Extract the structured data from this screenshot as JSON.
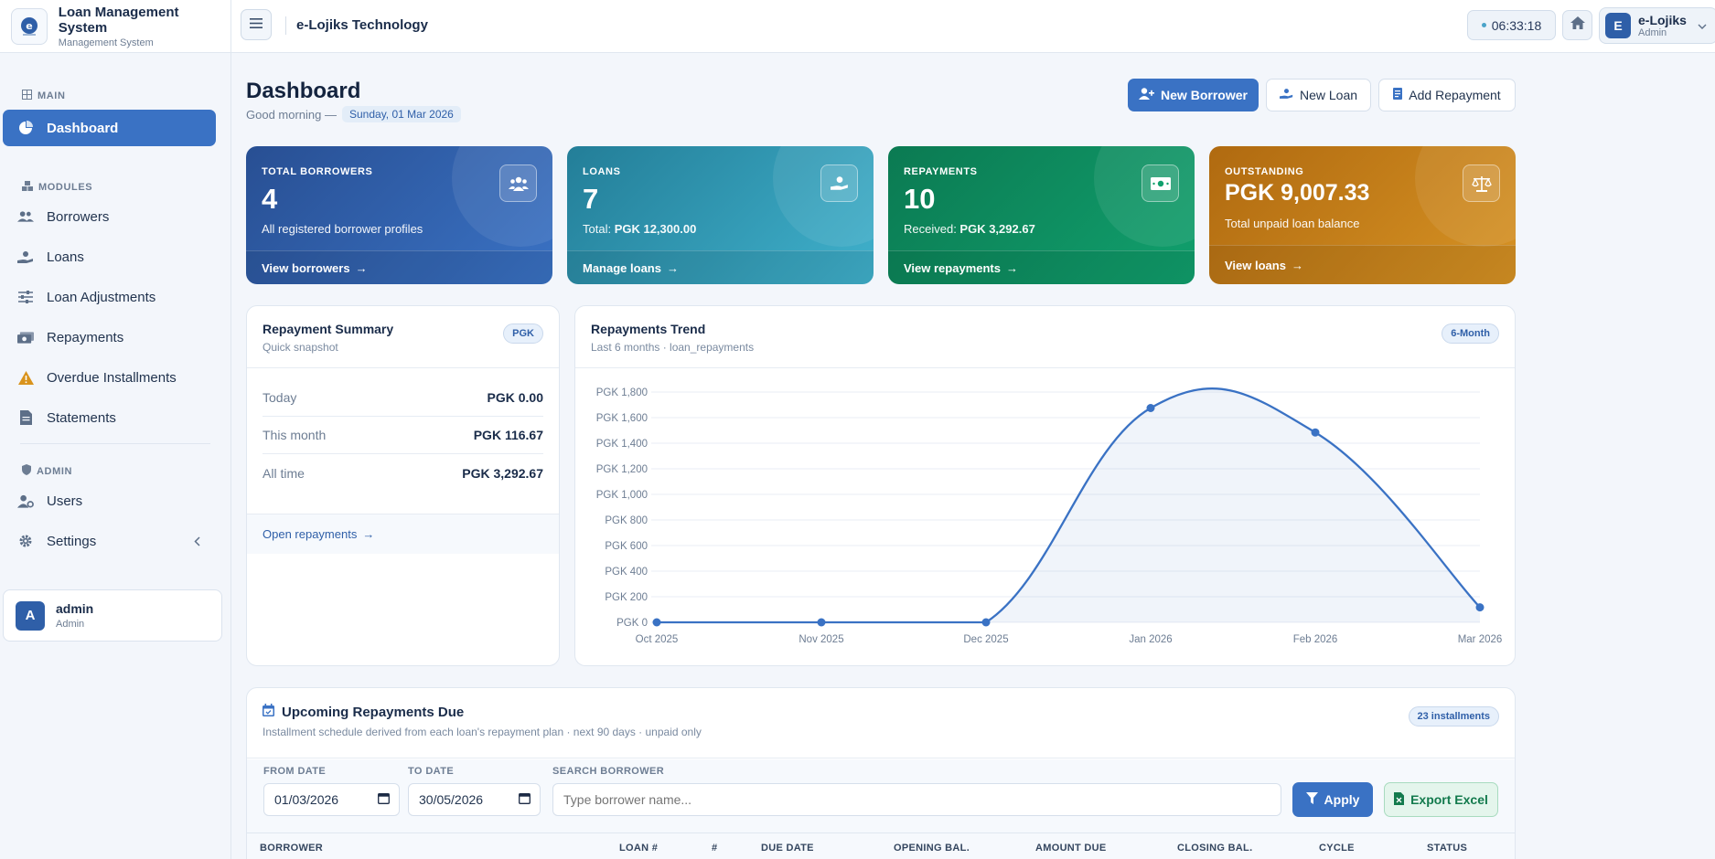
{
  "brand": {
    "title": "Loan Management System",
    "subtitle": "Management System"
  },
  "sidebar": {
    "sections": {
      "main": "MAIN",
      "modules": "MODULES",
      "admin": "ADMIN"
    },
    "items": [
      {
        "label": "Dashboard",
        "icon": "pie-chart-icon"
      },
      {
        "label": "Borrowers",
        "icon": "users-icon"
      },
      {
        "label": "Loans",
        "icon": "hand-coin-icon"
      },
      {
        "label": "Loan Adjustments",
        "icon": "sliders-icon"
      },
      {
        "label": "Repayments",
        "icon": "money-icon"
      },
      {
        "label": "Overdue Installments",
        "icon": "warning-icon"
      },
      {
        "label": "Statements",
        "icon": "document-icon"
      },
      {
        "label": "Users",
        "icon": "user-cog-icon"
      },
      {
        "label": "Settings",
        "icon": "gear-icon"
      }
    ],
    "user": {
      "initial": "A",
      "name": "admin",
      "role": "Admin"
    }
  },
  "topbar": {
    "org": "e-Lojiks Technology",
    "clock": "06:33:18",
    "profile": {
      "initial": "E",
      "name": "e-Lojiks",
      "role": "Admin"
    }
  },
  "header": {
    "title": "Dashboard",
    "greeting": "Good morning —",
    "date": "Sunday, 01 Mar 2026",
    "buttons": {
      "new_borrower": "New Borrower",
      "new_loan": "New Loan",
      "add_repayment": "Add Repayment"
    }
  },
  "stats": [
    {
      "label": "TOTAL BORROWERS",
      "value": "4",
      "sub": "All registered borrower profiles",
      "sub_strong": "",
      "link": "View borrowers",
      "color": "#2f5fa8"
    },
    {
      "label": "LOANS",
      "value": "7",
      "sub": "Total: ",
      "sub_strong": "PGK 12,300.00",
      "link": "Manage loans",
      "color": "#2a8fa8"
    },
    {
      "label": "REPAYMENTS",
      "value": "10",
      "sub": "Received: ",
      "sub_strong": "PGK 3,292.67",
      "link": "View repayments",
      "color": "#0f8a5f"
    },
    {
      "label": "OUTSTANDING",
      "value": "PGK 9,007.33",
      "sub": "Total unpaid loan balance",
      "sub_strong": "",
      "link": "View loans",
      "color": "#c27c17"
    }
  ],
  "summary": {
    "title": "Repayment Summary",
    "subtitle": "Quick snapshot",
    "badge": "PGK",
    "rows": [
      {
        "label": "Today",
        "value": "PGK 0.00"
      },
      {
        "label": "This month",
        "value": "PGK 116.67"
      },
      {
        "label": "All time",
        "value": "PGK 3,292.67"
      }
    ],
    "link": "Open repayments"
  },
  "trend": {
    "title": "Repayments Trend",
    "subtitle": "Last 6 months · loan_repayments",
    "badge": "6-Month"
  },
  "chart_data": {
    "type": "area",
    "categories": [
      "Oct 2025",
      "Nov 2025",
      "Dec 2025",
      "Jan 2026",
      "Feb 2026",
      "Mar 2026"
    ],
    "series": [
      {
        "values": [
          0,
          0,
          0,
          1675,
          1484,
          117
        ]
      }
    ],
    "y_ticks": [
      "PGK 0",
      "PGK 200",
      "PGK 400",
      "PGK 600",
      "PGK 800",
      "PGK 1,000",
      "PGK 1,200",
      "PGK 1,400",
      "PGK 1,600",
      "PGK 1,800"
    ],
    "ylim": [
      0,
      1800
    ],
    "grid": true,
    "line_color": "#3a72c4"
  },
  "upcoming": {
    "title": "Upcoming Repayments Due",
    "subtitle": "Installment schedule derived from each loan's repayment plan · next 90 days · unpaid only",
    "badge": "23 installments",
    "filters": {
      "from_label": "FROM DATE",
      "from_value": "01/03/2026",
      "to_label": "TO DATE",
      "to_value": "30/05/2026",
      "search_label": "SEARCH BORROWER",
      "search_placeholder": "Type borrower name..."
    },
    "apply": "Apply",
    "export": "Export Excel",
    "columns": [
      "BORROWER",
      "LOAN #",
      "#",
      "DUE DATE",
      "OPENING BAL.",
      "AMOUNT DUE",
      "CLOSING BAL.",
      "CYCLE",
      "STATUS"
    ]
  }
}
